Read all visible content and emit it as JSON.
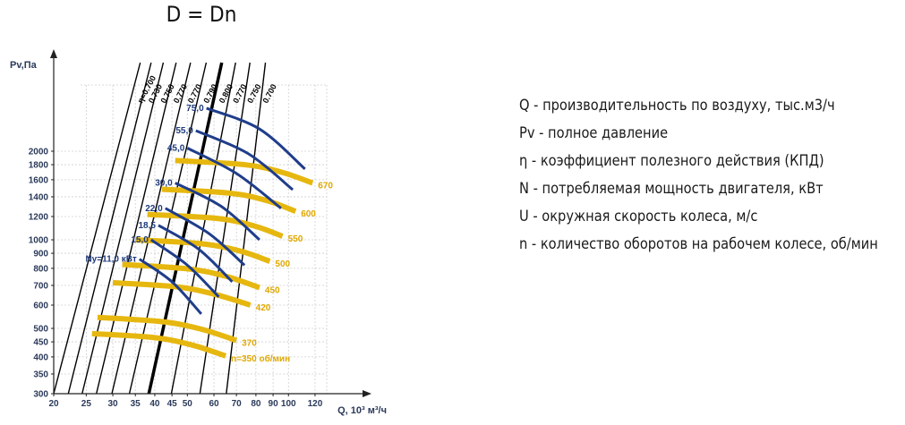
{
  "title": "D = Dn",
  "legend": [
    "Q - производительность по воздуху, тыс.м3/ч",
    "Pv - полное давление",
    "η - коэффициент полезного действия (КПД)",
    "N - потребляемая мощность двигателя, кВт",
    "U - окружная скорость колеса, м/с",
    "n - количество оборотов на рабочем колесе, об/мин"
  ],
  "colors": {
    "speed_curve": "#e6b70f",
    "power_curve": "#1f3d8a",
    "efficiency_line": "#000000",
    "axis_text": "#2b3a5a"
  },
  "chart_data": {
    "type": "line",
    "xlabel": "Q, 10³ м³/ч",
    "ylabel": "Pv,Па",
    "x_scale": "log",
    "y_scale": "log",
    "xlim": [
      20,
      130
    ],
    "ylim": [
      300,
      4000
    ],
    "grid": true,
    "x_ticks": [
      "20",
      "25",
      "30",
      "35",
      "40",
      "45",
      "50",
      "60",
      "70",
      "80",
      "90",
      "100",
      "120"
    ],
    "y_ticks": [
      "300",
      "350",
      "400",
      "450",
      "500",
      "600",
      "700",
      "800",
      "900",
      "1000",
      "1200",
      "1400",
      "1600",
      "1800",
      "2000"
    ],
    "efficiency_lines": [
      {
        "label": "η=0.700",
        "x": [
          20.0,
          36.2
        ],
        "y": [
          300,
          4000
        ]
      },
      {
        "label": "0.730",
        "x": [
          22.1,
          39.0
        ],
        "y": [
          300,
          4000
        ]
      },
      {
        "label": "0.750",
        "x": [
          24.3,
          42.4
        ],
        "y": [
          300,
          4000
        ]
      },
      {
        "label": "0.770",
        "x": [
          26.8,
          46.3
        ],
        "y": [
          300,
          4000
        ]
      },
      {
        "label": "0.770",
        "x": [
          29.8,
          51.1
        ],
        "y": [
          300,
          4000
        ]
      },
      {
        "label": "0.790",
        "x": [
          33.6,
          56.9
        ],
        "y": [
          300,
          4000
        ]
      },
      {
        "label": "0.800",
        "x": [
          38.4,
          63.3
        ],
        "y": [
          300,
          4000
        ],
        "emphasis": true
      },
      {
        "label": "0.770",
        "x": [
          44.8,
          69.6
        ],
        "y": [
          300,
          4000
        ]
      },
      {
        "label": "0.750",
        "x": [
          54.5,
          76.8
        ],
        "y": [
          300,
          4000
        ]
      },
      {
        "label": "0.700",
        "x": [
          65.3,
          85.4
        ],
        "y": [
          300,
          4000
        ]
      }
    ],
    "speed_curves": [
      {
        "label": "n=350 об/мин",
        "x": [
          26,
          40,
          52,
          65
        ],
        "y": [
          480,
          465,
          438,
          403
        ]
      },
      {
        "label": "370",
        "x": [
          27,
          42,
          55,
          70
        ],
        "y": [
          545,
          527,
          497,
          455
        ]
      },
      {
        "label": "420",
        "x": [
          30,
          46,
          60,
          77
        ],
        "y": [
          715,
          693,
          654,
          600
        ]
      },
      {
        "label": "450",
        "x": [
          32,
          50,
          65,
          82
        ],
        "y": [
          825,
          797,
          752,
          688
        ]
      },
      {
        "label": "500",
        "x": [
          35,
          55,
          72,
          88
        ],
        "y": [
          1000,
          970,
          915,
          845
        ]
      },
      {
        "label": "550",
        "x": [
          38,
          61,
          79,
          96
        ],
        "y": [
          1220,
          1183,
          1115,
          1028
        ]
      },
      {
        "label": "600",
        "x": [
          42,
          67,
          86,
          105
        ],
        "y": [
          1485,
          1440,
          1360,
          1250
        ]
      },
      {
        "label": "670",
        "x": [
          46,
          74,
          95,
          118
        ],
        "y": [
          1860,
          1800,
          1700,
          1560
        ]
      }
    ],
    "power_curves": [
      {
        "label": "Ny=11,0 кВт",
        "x": [
          36,
          45,
          55
        ],
        "y": [
          860,
          720,
          560
        ]
      },
      {
        "label": "15,0",
        "x": [
          39,
          50,
          62
        ],
        "y": [
          1000,
          820,
          640
        ]
      },
      {
        "label": "18,5",
        "x": [
          41,
          54,
          68
        ],
        "y": [
          1120,
          930,
          720
        ]
      },
      {
        "label": "22,0",
        "x": [
          43,
          58,
          74
        ],
        "y": [
          1280,
          1050,
          820
        ]
      },
      {
        "label": "30,0",
        "x": [
          46,
          63,
          82
        ],
        "y": [
          1560,
          1300,
          1000
        ]
      },
      {
        "label": "45,0",
        "x": [
          50,
          70,
          95
        ],
        "y": [
          2050,
          1680,
          1280
        ]
      },
      {
        "label": "55,0",
        "x": [
          53,
          76,
          103
        ],
        "y": [
          2350,
          1960,
          1480
        ]
      },
      {
        "label": "75,0",
        "x": [
          57,
          82,
          112
        ],
        "y": [
          2800,
          2380,
          1740
        ]
      }
    ]
  }
}
